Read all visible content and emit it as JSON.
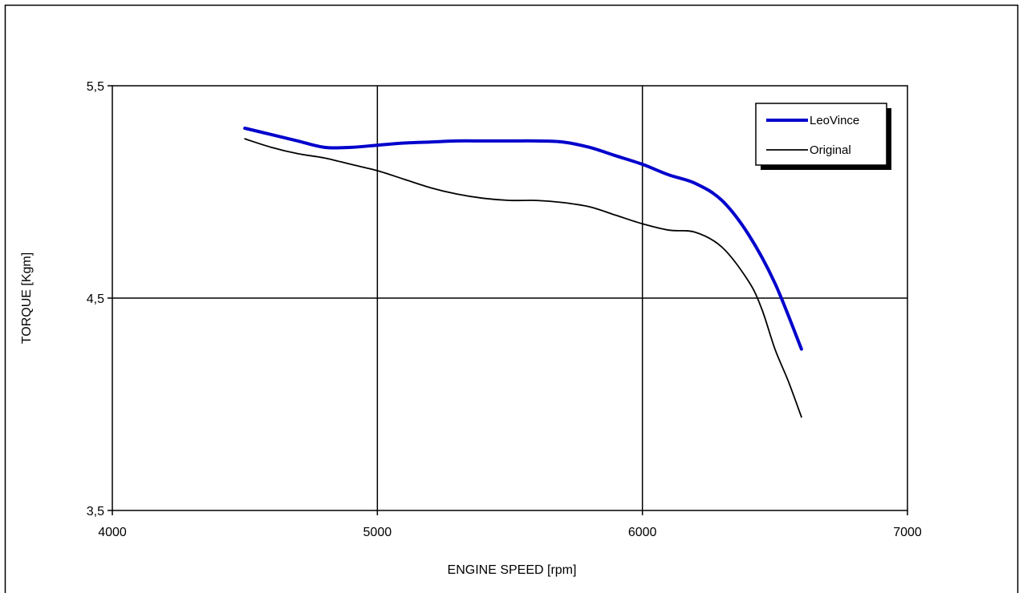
{
  "chart_data": {
    "type": "line",
    "xlabel": "ENGINE SPEED [rpm]",
    "ylabel": "TORQUE [Kgm]",
    "xlim": [
      4000,
      7000
    ],
    "ylim": [
      3.5,
      5.5
    ],
    "x_ticks": [
      {
        "value": 4000,
        "label": "4000"
      },
      {
        "value": 5000,
        "label": "5000"
      },
      {
        "value": 6000,
        "label": "6000"
      },
      {
        "value": 7000,
        "label": "7000"
      }
    ],
    "y_ticks": [
      {
        "value": 3.5,
        "label": "3,5"
      },
      {
        "value": 4.5,
        "label": "4,5"
      },
      {
        "value": 5.5,
        "label": "5,5"
      }
    ],
    "grid": true,
    "legend_position": "top-right",
    "series": [
      {
        "name": "LeoVince",
        "color": "#0000cc",
        "line_width": "thick",
        "x": [
          4500,
          4600,
          4700,
          4800,
          4900,
          5000,
          5100,
          5200,
          5300,
          5400,
          5500,
          5600,
          5700,
          5800,
          5900,
          6000,
          6100,
          6200,
          6300,
          6400,
          6500,
          6600
        ],
        "y": [
          5.3,
          5.27,
          5.24,
          5.21,
          5.21,
          5.22,
          5.23,
          5.235,
          5.24,
          5.24,
          5.24,
          5.24,
          5.235,
          5.21,
          5.17,
          5.13,
          5.08,
          5.04,
          4.96,
          4.8,
          4.57,
          4.26
        ]
      },
      {
        "name": "Original",
        "color": "#000000",
        "line_width": "thin",
        "x": [
          4500,
          4600,
          4700,
          4800,
          4900,
          5000,
          5100,
          5200,
          5300,
          5400,
          5500,
          5600,
          5700,
          5800,
          5900,
          6000,
          6100,
          6200,
          6300,
          6400,
          6450,
          6500,
          6550,
          6600
        ],
        "y": [
          5.25,
          5.21,
          5.18,
          5.16,
          5.13,
          5.1,
          5.06,
          5.02,
          4.99,
          4.97,
          4.96,
          4.96,
          4.95,
          4.93,
          4.89,
          4.85,
          4.82,
          4.81,
          4.74,
          4.58,
          4.45,
          4.26,
          4.11,
          3.94
        ]
      }
    ]
  }
}
